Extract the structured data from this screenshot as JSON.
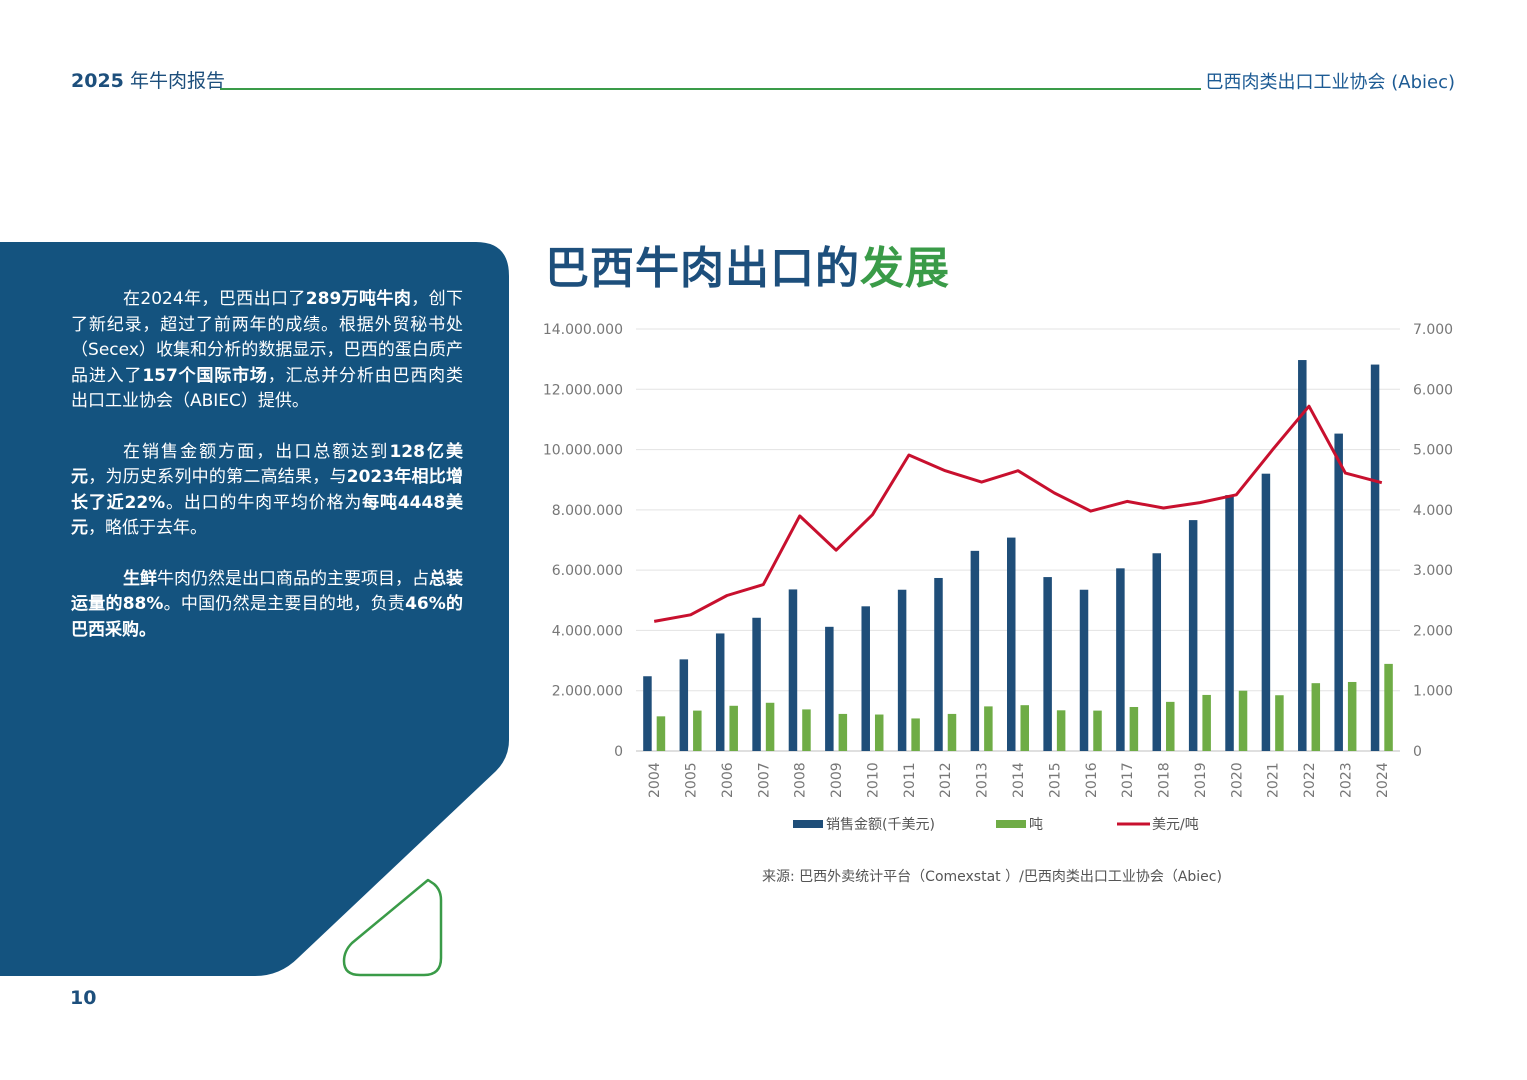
{
  "header": {
    "year_label": "2025",
    "report_label": "年牛肉报告",
    "org_label": "巴西肉类出口工业协会 (Abiec)"
  },
  "panel": {
    "p1": [
      "在2024年，巴西出口了",
      "289万吨牛肉",
      "，创下了新纪录，超过了前两年的成绩。根据外贸秘书处（Secex）收集和分析的数据显示，巴西的蛋白质产品进入了",
      "157个国际市场",
      "，汇总并分析由巴西肉类出口工业协会（ABIEC）提供。"
    ],
    "p2": [
      "在销售金额方面，出口总额达到",
      "128亿美元",
      "，为历史系列中的第二高结果，与",
      "2023年相比增长了近22%",
      "。出口的牛肉平均价格为",
      "每吨4448美元",
      "，略低于去年。"
    ],
    "p3": [
      "生鲜",
      "牛肉仍然是出口商品的主要项目，占",
      "总装运量的88%",
      "。中国仍然是主要目的地，负责",
      "46%的巴西采购。"
    ]
  },
  "page_number": "10",
  "chart_title": {
    "main": "巴西牛肉出口的",
    "accent": "发展"
  },
  "source": "来源: 巴西外卖统计平台（Comexstat ）/巴西肉类出口工业协会（Abiec)",
  "colors": {
    "navy": "#1d4f7c",
    "green": "#3a9b48",
    "bar_value": "#1f4e79",
    "bar_tons": "#6fac46",
    "line_price": "#c8102e"
  },
  "chart_data": {
    "type": "bar",
    "categories": [
      "2004",
      "2005",
      "2006",
      "2007",
      "2008",
      "2009",
      "2010",
      "2011",
      "2012",
      "2013",
      "2014",
      "2015",
      "2016",
      "2017",
      "2018",
      "2019",
      "2020",
      "2021",
      "2022",
      "2023",
      "2024"
    ],
    "series": [
      {
        "name": "销售金额(千美元)",
        "axis": "left",
        "kind": "bar",
        "values": [
          2480000,
          3040000,
          3900000,
          4420000,
          5360000,
          4120000,
          4800000,
          5350000,
          5740000,
          6640000,
          7080000,
          5770000,
          5350000,
          6060000,
          6560000,
          7660000,
          8490000,
          9200000,
          12970000,
          10530000,
          12820000
        ]
      },
      {
        "name": "吨",
        "axis": "left",
        "kind": "bar",
        "values": [
          1150000,
          1340000,
          1500000,
          1600000,
          1380000,
          1230000,
          1210000,
          1080000,
          1230000,
          1480000,
          1520000,
          1350000,
          1340000,
          1460000,
          1630000,
          1860000,
          2000000,
          1850000,
          2250000,
          2290000,
          2890000
        ]
      },
      {
        "name": "美元/吨",
        "axis": "right",
        "kind": "line",
        "values": [
          2150,
          2260,
          2580,
          2760,
          3900,
          3330,
          3920,
          4910,
          4650,
          4460,
          4650,
          4280,
          3980,
          4140,
          4030,
          4120,
          4250,
          5000,
          5720,
          4610,
          4450
        ]
      }
    ],
    "left_axis": {
      "min": 0,
      "max": 14000000,
      "ticks": [
        "0",
        "2.000.000",
        "4.000.000",
        "6.000.000",
        "8.000.000",
        "10.000.000",
        "12.000.000",
        "14.000.000"
      ]
    },
    "right_axis": {
      "min": 0,
      "max": 7000,
      "ticks": [
        "0",
        "1.000",
        "2.000",
        "3.000",
        "4.000",
        "5.000",
        "6.000",
        "7.000"
      ]
    },
    "grid": true,
    "legend_position": "bottom"
  }
}
